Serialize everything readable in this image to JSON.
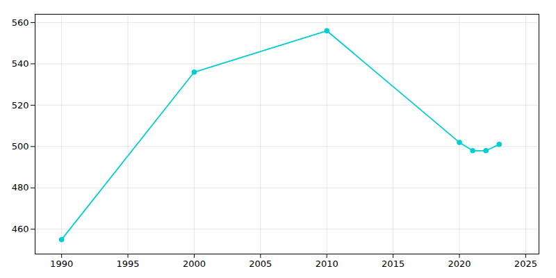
{
  "chart_data": {
    "type": "line",
    "x": [
      1990,
      2000,
      2010,
      2020,
      2021,
      2022,
      2023
    ],
    "values": [
      455,
      536,
      556,
      502,
      498,
      498,
      501
    ],
    "color": "#00CED1",
    "marker": "circle",
    "xlim": [
      1988,
      2026
    ],
    "ylim": [
      448,
      564
    ],
    "xticks": [
      1990,
      1995,
      2000,
      2005,
      2010,
      2015,
      2020,
      2025
    ],
    "yticks": [
      460,
      480,
      500,
      520,
      540,
      560
    ],
    "grid": true
  }
}
